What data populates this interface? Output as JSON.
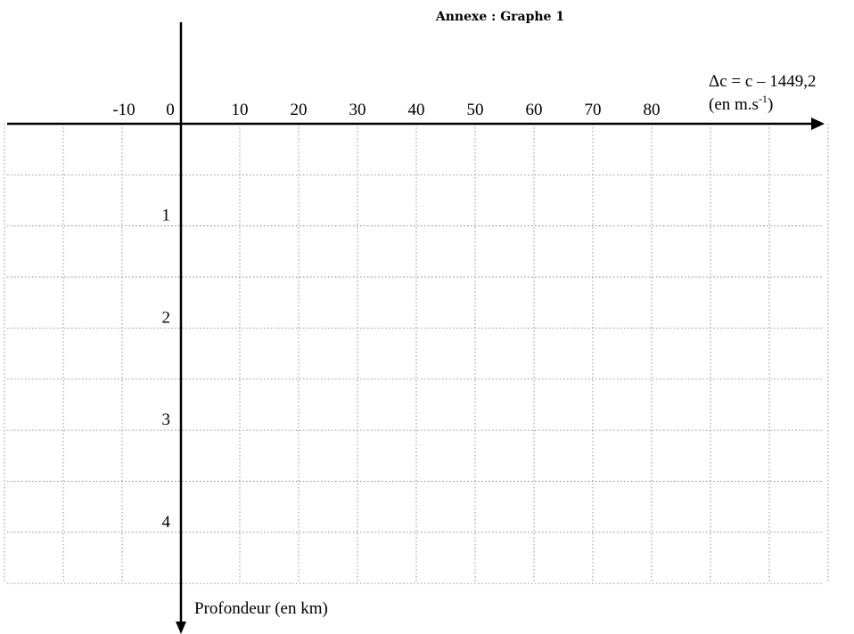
{
  "chart_data": {
    "type": "line",
    "title": "Annexe : Graphe 1",
    "xlabel_line1": "Δc = c – 1449,2",
    "xlabel_line2_pre": "(en m.s",
    "xlabel_line2_sup": "-1",
    "xlabel_line2_post": ")",
    "ylabel": "Profondeur (en km)",
    "x_ticks": [
      "-10",
      "0",
      "10",
      "20",
      "30",
      "40",
      "50",
      "60",
      "70",
      "80"
    ],
    "y_ticks": [
      "1",
      "2",
      "3",
      "4"
    ],
    "xlim": [
      -30,
      110
    ],
    "ylim": [
      0,
      4.5
    ],
    "y_inverted": true,
    "grid": true,
    "series": []
  }
}
